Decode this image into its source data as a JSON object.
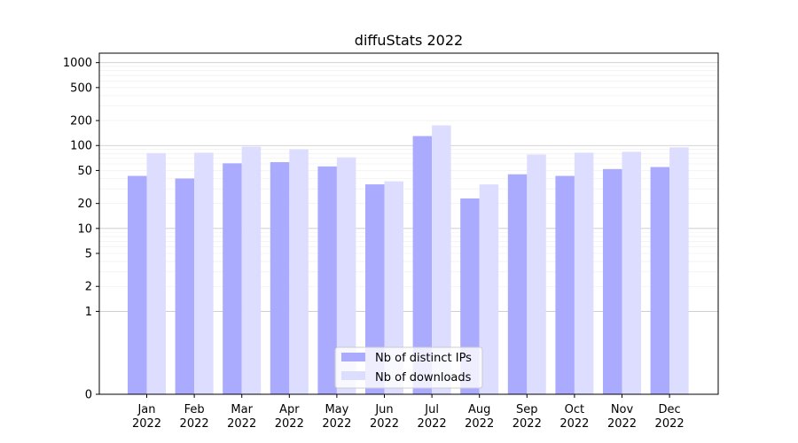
{
  "chart_data": {
    "type": "bar",
    "title": "diffuStats 2022",
    "xlabel": "",
    "ylabel": "",
    "yscale": "symlog",
    "ylim": [
      0,
      1300
    ],
    "yticks": [
      0,
      1,
      2,
      5,
      10,
      20,
      50,
      100,
      200,
      500,
      1000
    ],
    "ytick_labels": [
      "0",
      "1",
      "2",
      "5",
      "10",
      "20",
      "50",
      "100",
      "200",
      "500",
      "1000"
    ],
    "grid": true,
    "legend_position": "bottom-center",
    "categories": [
      {
        "month": "Jan",
        "year": "2022"
      },
      {
        "month": "Feb",
        "year": "2022"
      },
      {
        "month": "Mar",
        "year": "2022"
      },
      {
        "month": "Apr",
        "year": "2022"
      },
      {
        "month": "May",
        "year": "2022"
      },
      {
        "month": "Jun",
        "year": "2022"
      },
      {
        "month": "Jul",
        "year": "2022"
      },
      {
        "month": "Aug",
        "year": "2022"
      },
      {
        "month": "Sep",
        "year": "2022"
      },
      {
        "month": "Oct",
        "year": "2022"
      },
      {
        "month": "Nov",
        "year": "2022"
      },
      {
        "month": "Dec",
        "year": "2022"
      }
    ],
    "series": [
      {
        "name": "Nb of distinct IPs",
        "color": "#aaaaff",
        "values": [
          43,
          40,
          61,
          63,
          56,
          34,
          130,
          23,
          45,
          43,
          52,
          55
        ]
      },
      {
        "name": "Nb of downloads",
        "color": "#ddddff",
        "values": [
          81,
          82,
          97,
          90,
          72,
          37,
          175,
          34,
          78,
          82,
          84,
          95
        ]
      }
    ]
  }
}
